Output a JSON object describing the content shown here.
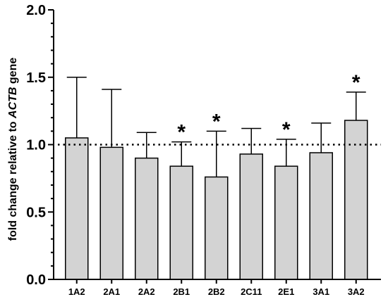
{
  "chart_data": {
    "type": "bar",
    "categories": [
      "1A2",
      "2A1",
      "2A2",
      "2B1",
      "2B2",
      "2C11",
      "2E1",
      "3A1",
      "3A2"
    ],
    "values": [
      1.05,
      0.98,
      0.9,
      0.84,
      0.76,
      0.93,
      0.84,
      0.94,
      1.18
    ],
    "error_upper": [
      1.5,
      1.41,
      1.09,
      1.02,
      1.1,
      1.12,
      1.04,
      1.16,
      1.39
    ],
    "significant": [
      false,
      false,
      false,
      true,
      true,
      false,
      true,
      false,
      true
    ],
    "significance_marker": "*",
    "ylabel_prefix": "fold change relative to ",
    "ylabel_italic": "ACTB",
    "ylabel_suffix": " gene",
    "ylim": [
      0.0,
      2.0
    ],
    "yticks": [
      "0.0",
      "0.5",
      "1.0",
      "1.5",
      "2.0"
    ],
    "reference_line": 1.0,
    "grid": false,
    "bar_color": "#d3d3d3",
    "edge_color": "#000000"
  }
}
